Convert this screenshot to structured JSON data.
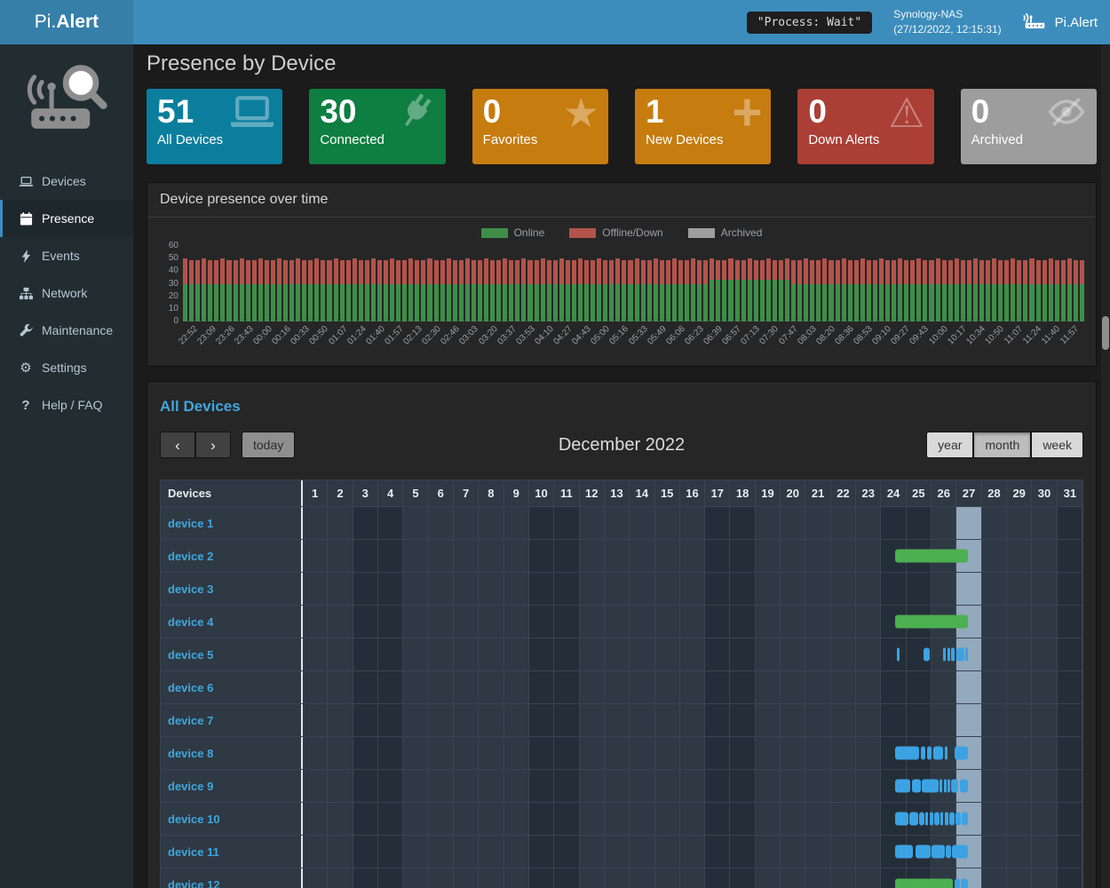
{
  "navbar": {
    "brand_prefix": "Pi",
    "brand_dot": ".",
    "brand_suffix": "Alert",
    "process_status": "\"Process: Wait\"",
    "host_name": "Synology-NAS",
    "host_timestamp": "(27/12/2022, 12:15:31)",
    "app_label": "Pi.Alert"
  },
  "sidebar": {
    "items": [
      {
        "label": "Devices",
        "icon": "laptop-icon",
        "active": false
      },
      {
        "label": "Presence",
        "icon": "calendar-icon",
        "active": true
      },
      {
        "label": "Events",
        "icon": "bolt-icon",
        "active": false
      },
      {
        "label": "Network",
        "icon": "sitemap-icon",
        "active": false
      },
      {
        "label": "Maintenance",
        "icon": "wrench-icon",
        "active": false
      },
      {
        "label": "Settings",
        "icon": "gear-icon",
        "active": false
      },
      {
        "label": "Help / FAQ",
        "icon": "question-icon",
        "active": false
      }
    ]
  },
  "page": {
    "title": "Presence by Device"
  },
  "summary_cards": [
    {
      "value": "51",
      "label": "All Devices",
      "color": "#0b7e9e",
      "icon": "laptop-icon"
    },
    {
      "value": "30",
      "label": "Connected",
      "color": "#0e7e41",
      "icon": "plug-icon"
    },
    {
      "value": "0",
      "label": "Favorites",
      "color": "#c67c0e",
      "icon": "star-icon"
    },
    {
      "value": "1",
      "label": "New Devices",
      "color": "#c67c0e",
      "icon": "plus-icon"
    },
    {
      "value": "0",
      "label": "Down Alerts",
      "color": "#ab3f35",
      "icon": "warning-icon"
    },
    {
      "value": "0",
      "label": "Archived",
      "color": "#9d9d9d",
      "icon": "eye-slash-icon"
    }
  ],
  "chart_data": {
    "type": "bar",
    "stacked": true,
    "panel_title": "Device presence over time",
    "legend": [
      {
        "label": "Online",
        "color": "#3e8e49"
      },
      {
        "label": "Offline/Down",
        "color": "#b3534b"
      },
      {
        "label": "Archived",
        "color": "#9e9e9e"
      }
    ],
    "ylim": [
      0,
      60
    ],
    "y_ticks": [
      0,
      10,
      20,
      30,
      40,
      50,
      60
    ],
    "bars_per_label": 3,
    "x_labels": [
      "22:52",
      "23:09",
      "23:26",
      "23:43",
      "00:00",
      "00:16",
      "00:33",
      "00:50",
      "01:07",
      "01:24",
      "01:40",
      "01:57",
      "02:13",
      "02:30",
      "02:46",
      "03:03",
      "03:20",
      "03:37",
      "03:53",
      "04:10",
      "04:27",
      "04:43",
      "05:00",
      "05:16",
      "05:33",
      "05:49",
      "06:06",
      "06:23",
      "06:39",
      "06:57",
      "07:13",
      "07:30",
      "07:47",
      "08:03",
      "08:20",
      "08:36",
      "08:53",
      "09:10",
      "09:27",
      "09:43",
      "10:00",
      "10:17",
      "10:34",
      "10:50",
      "11:07",
      "11:24",
      "11:40",
      "11:57"
    ],
    "series": [
      {
        "name": "Online",
        "color": "#3e8e49",
        "values": [
          30,
          30,
          30,
          30,
          30,
          30,
          30,
          30,
          30,
          30,
          30,
          30,
          30,
          30,
          30,
          30,
          30,
          30,
          30,
          30,
          30,
          30,
          30,
          30,
          30,
          30,
          30,
          30,
          30,
          30,
          30,
          30,
          30,
          30,
          30,
          30,
          30,
          30,
          30,
          30,
          30,
          30,
          30,
          30,
          30,
          30,
          30,
          30,
          30,
          30,
          30,
          30,
          30,
          30,
          30,
          30,
          30,
          30,
          30,
          30,
          30,
          30,
          30,
          30,
          30,
          30,
          30,
          30,
          30,
          30,
          30,
          30,
          30,
          30,
          30,
          30,
          30,
          30,
          30,
          30,
          30,
          30,
          30,
          30,
          33,
          33,
          33,
          33,
          33,
          33,
          33,
          33,
          33,
          33,
          33,
          33,
          33,
          30,
          30,
          30,
          30,
          30,
          30,
          30,
          30,
          30,
          30,
          30,
          30,
          30,
          30,
          30,
          30,
          30,
          30,
          30,
          30,
          30,
          30,
          30,
          30,
          30,
          30,
          30,
          30,
          30,
          30,
          30,
          30,
          30,
          30,
          30,
          30,
          30,
          30,
          30,
          30,
          30,
          30,
          30,
          30,
          30,
          30,
          30
        ]
      },
      {
        "name": "Offline/Down",
        "color": "#b3534b",
        "values": [
          20,
          19,
          19,
          20,
          19,
          19,
          20,
          19,
          19,
          20,
          19,
          19,
          20,
          19,
          19,
          20,
          19,
          19,
          20,
          19,
          19,
          20,
          19,
          19,
          20,
          19,
          19,
          20,
          19,
          19,
          20,
          19,
          19,
          20,
          19,
          19,
          20,
          19,
          19,
          20,
          19,
          19,
          20,
          19,
          19,
          20,
          19,
          19,
          20,
          19,
          19,
          20,
          19,
          19,
          20,
          19,
          19,
          20,
          19,
          19,
          20,
          19,
          19,
          20,
          19,
          19,
          20,
          19,
          19,
          20,
          19,
          19,
          20,
          19,
          19,
          20,
          19,
          19,
          20,
          19,
          19,
          20,
          19,
          19,
          17,
          16,
          16,
          17,
          16,
          16,
          17,
          16,
          16,
          17,
          16,
          16,
          17,
          19,
          19,
          20,
          19,
          19,
          20,
          19,
          19,
          20,
          19,
          19,
          20,
          19,
          19,
          20,
          19,
          19,
          20,
          19,
          19,
          20,
          19,
          19,
          20,
          19,
          19,
          20,
          19,
          19,
          20,
          19,
          19,
          20,
          19,
          19,
          20,
          19,
          19,
          20,
          19,
          19,
          20,
          19,
          19,
          20,
          19,
          19
        ]
      }
    ]
  },
  "calendar": {
    "heading": "All Devices",
    "toolbar": {
      "prev_icon": "‹",
      "next_icon": "›",
      "today_label": "today",
      "title": "December 2022",
      "views": [
        "year",
        "month",
        "week"
      ],
      "active_view": "month"
    },
    "devices_header": "Devices",
    "days": [
      1,
      2,
      3,
      4,
      5,
      6,
      7,
      8,
      9,
      10,
      11,
      12,
      13,
      14,
      15,
      16,
      17,
      18,
      19,
      20,
      21,
      22,
      23,
      24,
      25,
      26,
      27,
      28,
      29,
      30,
      31
    ],
    "weekend_days": [
      3,
      4,
      10,
      11,
      17,
      18,
      24,
      25,
      31
    ],
    "today_day": 27,
    "event_colors": {
      "online": "#4caf50",
      "session": "#3ba3e3"
    },
    "rows": [
      {
        "name": "device 1",
        "events": []
      },
      {
        "name": "device 2",
        "events": [
          {
            "start": 23.55,
            "end": 26.45,
            "type": "online"
          }
        ]
      },
      {
        "name": "device 3",
        "events": []
      },
      {
        "name": "device 4",
        "events": [
          {
            "start": 23.55,
            "end": 26.45,
            "type": "online"
          }
        ]
      },
      {
        "name": "device 5",
        "events": [
          {
            "start": 23.6,
            "end": 23.72,
            "type": "session"
          },
          {
            "start": 24.65,
            "end": 24.9,
            "type": "session"
          },
          {
            "start": 25.45,
            "end": 25.55,
            "type": "session"
          },
          {
            "start": 25.63,
            "end": 25.73,
            "type": "session"
          },
          {
            "start": 25.78,
            "end": 25.92,
            "type": "session"
          },
          {
            "start": 25.98,
            "end": 26.28,
            "type": "session"
          },
          {
            "start": 26.33,
            "end": 26.45,
            "type": "session"
          }
        ]
      },
      {
        "name": "device 6",
        "events": []
      },
      {
        "name": "device 7",
        "events": []
      },
      {
        "name": "device 8",
        "events": [
          {
            "start": 23.55,
            "end": 24.5,
            "type": "session"
          },
          {
            "start": 24.55,
            "end": 24.75,
            "type": "session"
          },
          {
            "start": 24.8,
            "end": 25.0,
            "type": "session"
          },
          {
            "start": 25.05,
            "end": 25.45,
            "type": "session"
          },
          {
            "start": 25.5,
            "end": 25.62,
            "type": "session"
          },
          {
            "start": 25.9,
            "end": 26.45,
            "type": "session"
          }
        ]
      },
      {
        "name": "device 9",
        "events": [
          {
            "start": 23.55,
            "end": 24.15,
            "type": "session"
          },
          {
            "start": 24.2,
            "end": 24.55,
            "type": "session"
          },
          {
            "start": 24.6,
            "end": 25.25,
            "type": "session"
          },
          {
            "start": 25.3,
            "end": 25.42,
            "type": "session"
          },
          {
            "start": 25.47,
            "end": 25.57,
            "type": "session"
          },
          {
            "start": 25.62,
            "end": 25.72,
            "type": "session"
          },
          {
            "start": 25.77,
            "end": 26.05,
            "type": "session"
          },
          {
            "start": 26.1,
            "end": 26.45,
            "type": "session"
          }
        ]
      },
      {
        "name": "device 10",
        "events": [
          {
            "start": 23.55,
            "end": 24.05,
            "type": "session"
          },
          {
            "start": 24.1,
            "end": 24.45,
            "type": "session"
          },
          {
            "start": 24.5,
            "end": 24.7,
            "type": "session"
          },
          {
            "start": 24.75,
            "end": 24.85,
            "type": "session"
          },
          {
            "start": 24.9,
            "end": 25.05,
            "type": "session"
          },
          {
            "start": 25.1,
            "end": 25.3,
            "type": "session"
          },
          {
            "start": 25.35,
            "end": 25.45,
            "type": "session"
          },
          {
            "start": 25.5,
            "end": 25.65,
            "type": "session"
          },
          {
            "start": 25.7,
            "end": 25.9,
            "type": "session"
          },
          {
            "start": 25.95,
            "end": 26.15,
            "type": "session"
          },
          {
            "start": 26.2,
            "end": 26.45,
            "type": "session"
          }
        ]
      },
      {
        "name": "device 11",
        "events": [
          {
            "start": 23.55,
            "end": 24.25,
            "type": "session"
          },
          {
            "start": 24.35,
            "end": 24.95,
            "type": "session"
          },
          {
            "start": 25.0,
            "end": 25.5,
            "type": "session"
          },
          {
            "start": 25.55,
            "end": 25.75,
            "type": "session"
          },
          {
            "start": 25.8,
            "end": 26.45,
            "type": "session"
          }
        ]
      },
      {
        "name": "device 12",
        "events": [
          {
            "start": 23.55,
            "end": 25.85,
            "type": "online"
          },
          {
            "start": 25.9,
            "end": 26.1,
            "type": "session"
          },
          {
            "start": 26.15,
            "end": 26.45,
            "type": "session"
          }
        ]
      }
    ]
  }
}
